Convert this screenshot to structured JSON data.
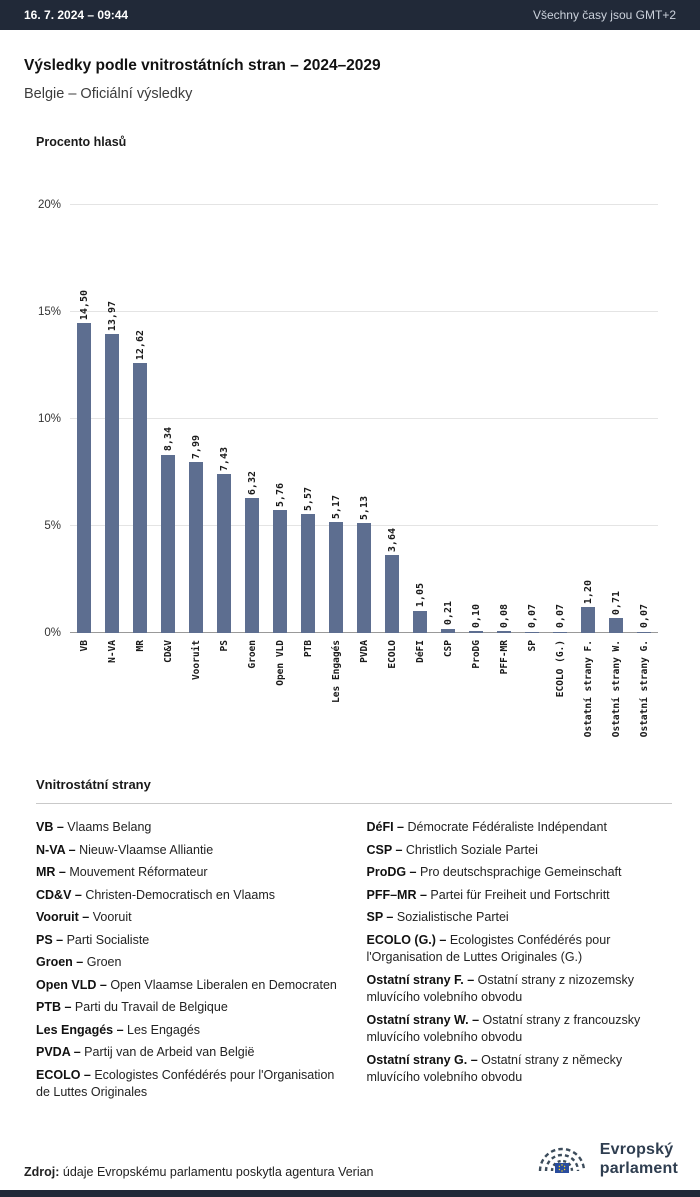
{
  "header": {
    "datetime": "16. 7. 2024 – 09:44",
    "timezone_note": "Všechny časy jsou GMT+2"
  },
  "page": {
    "title": "Výsledky podle vnitrostátních stran – 2024–2029",
    "subtitle": "Belgie – Oficiální výsledky"
  },
  "chart_data": {
    "type": "bar",
    "title": "Procento hlasů",
    "ylabel": "Procento hlasů",
    "ylim": [
      0,
      20
    ],
    "yticks": [
      "0%",
      "5%",
      "10%",
      "15%",
      "20%"
    ],
    "grid": true,
    "bar_color": "#5d6e90",
    "categories": [
      "VB",
      "N-VA",
      "MR",
      "CD&V",
      "Vooruit",
      "PS",
      "Groen",
      "Open VLD",
      "PTB",
      "Les Engagés",
      "PVDA",
      "ECOLO",
      "DéFI",
      "CSP",
      "ProDG",
      "PFF-MR",
      "SP",
      "ECOLO (G.)",
      "Ostatní strany F.",
      "Ostatní strany W.",
      "Ostatní strany G."
    ],
    "values": [
      14.5,
      13.97,
      12.62,
      8.34,
      7.99,
      7.43,
      6.32,
      5.76,
      5.57,
      5.17,
      5.13,
      3.64,
      1.05,
      0.21,
      0.1,
      0.08,
      0.07,
      0.07,
      1.2,
      0.71,
      0.07
    ],
    "value_labels": [
      "14,50",
      "13,97",
      "12,62",
      "8,34",
      "7,99",
      "7,43",
      "6,32",
      "5,76",
      "5,57",
      "5,17",
      "5,13",
      "3,64",
      "1,05",
      "0,21",
      "0,10",
      "0,08",
      "0,07",
      "0,07",
      "1,20",
      "0,71",
      "0,07"
    ]
  },
  "legend": {
    "title": "Vnitrostátní strany",
    "left_column": [
      {
        "abbr": "VB –",
        "name": "Vlaams Belang"
      },
      {
        "abbr": "N-VA –",
        "name": "Nieuw-Vlaamse Alliantie"
      },
      {
        "abbr": "MR –",
        "name": "Mouvement Réformateur"
      },
      {
        "abbr": "CD&V –",
        "name": "Christen-Democratisch en Vlaams"
      },
      {
        "abbr": "Vooruit –",
        "name": "Vooruit"
      },
      {
        "abbr": "PS –",
        "name": "Parti Socialiste"
      },
      {
        "abbr": "Groen –",
        "name": "Groen"
      },
      {
        "abbr": "Open VLD –",
        "name": "Open Vlaamse Liberalen en Democraten"
      },
      {
        "abbr": "PTB –",
        "name": "Parti du Travail de Belgique"
      },
      {
        "abbr": "Les Engagés –",
        "name": "Les Engagés"
      },
      {
        "abbr": "PVDA –",
        "name": "Partij van de Arbeid van België"
      },
      {
        "abbr": "ECOLO –",
        "name": "Ecologistes Confédérés pour l'Organisation de Luttes Originales"
      }
    ],
    "right_column": [
      {
        "abbr": "DéFI –",
        "name": "Démocrate Fédéraliste Indépendant"
      },
      {
        "abbr": "CSP –",
        "name": "Christlich Soziale Partei"
      },
      {
        "abbr": "ProDG –",
        "name": "Pro deutschsprachige Gemeinschaft"
      },
      {
        "abbr": "PFF–MR –",
        "name": "Partei für Freiheit und Fortschritt"
      },
      {
        "abbr": "SP –",
        "name": "Sozialistische Partei"
      },
      {
        "abbr": "ECOLO (G.) –",
        "name": "Ecologistes Confédérés pour l'Organisation de Luttes Originales (G.)"
      },
      {
        "abbr": "Ostatní strany F. –",
        "name": "Ostatní strany z nizozemsky mluvícího volebního obvodu"
      },
      {
        "abbr": "Ostatní strany W. –",
        "name": "Ostatní strany z francouzsky mluvícího volebního obvodu"
      },
      {
        "abbr": "Ostatní strany G. –",
        "name": "Ostatní strany z německy mluvícího volebního obvodu"
      }
    ]
  },
  "footer": {
    "source_label": "Zdroj:",
    "source_text": "údaje Evropskému parlamentu poskytla agentura Verian",
    "logo_line1": "Evropský",
    "logo_line2": "parlament"
  },
  "colors": {
    "header_bg": "#212938",
    "bar": "#5d6e90",
    "eu_flag_blue": "#2a4d9e",
    "eu_star_yellow": "#ffd617"
  }
}
